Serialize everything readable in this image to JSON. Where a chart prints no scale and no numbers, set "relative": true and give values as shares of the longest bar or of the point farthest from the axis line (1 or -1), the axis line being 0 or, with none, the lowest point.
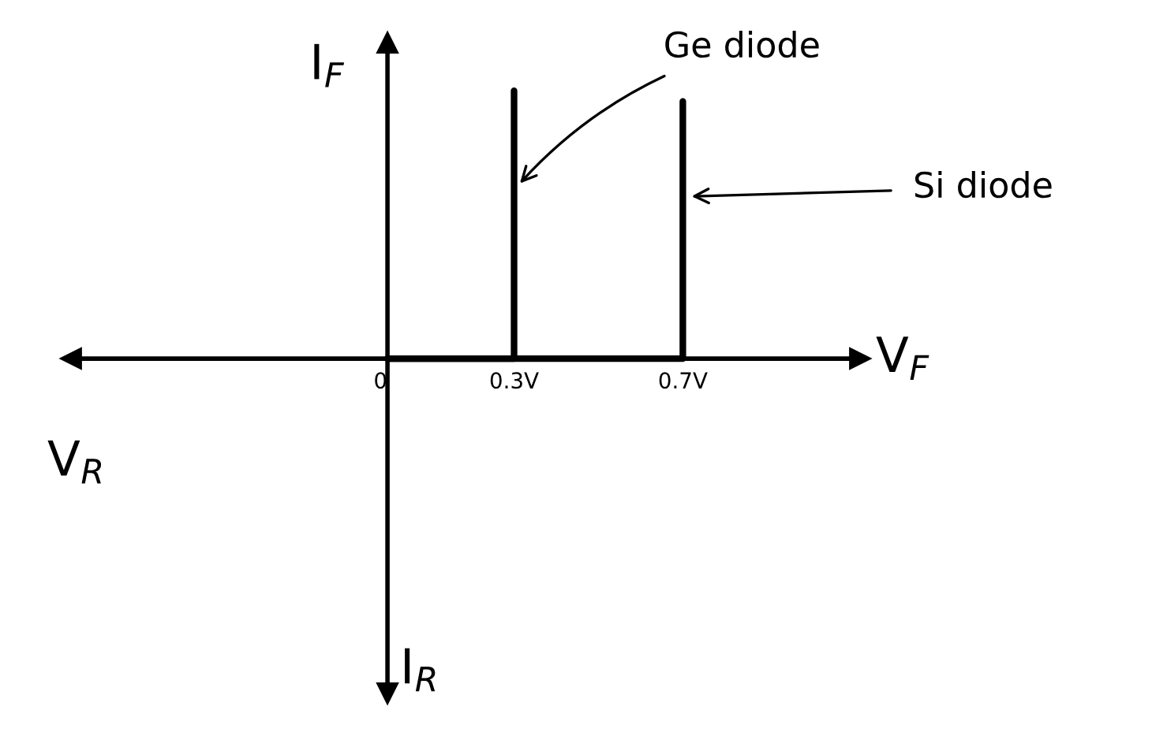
{
  "chart_data": {
    "type": "line",
    "relative": true,
    "xlabel": "V$_{F}$",
    "ylabel": "I$_{F}$",
    "annotations": [
      "V$_{R}$",
      "I$_{R}$"
    ],
    "xlim": [
      -0.75,
      1.12
    ],
    "xticks": [
      {
        "value": 0,
        "label": "0"
      },
      {
        "value": 0.3,
        "label": "0.3V"
      },
      {
        "value": 0.7,
        "label": "0.7V"
      }
    ],
    "series": [
      {
        "name": "Ge diode",
        "color": "#000000",
        "x": [
          0,
          0.3,
          0.3
        ],
        "values": [
          0,
          0,
          1
        ]
      },
      {
        "name": "Si diode",
        "color": "#000000",
        "x": [
          0,
          0.7,
          0.7
        ],
        "values": [
          0,
          0,
          0.96
        ]
      }
    ]
  }
}
